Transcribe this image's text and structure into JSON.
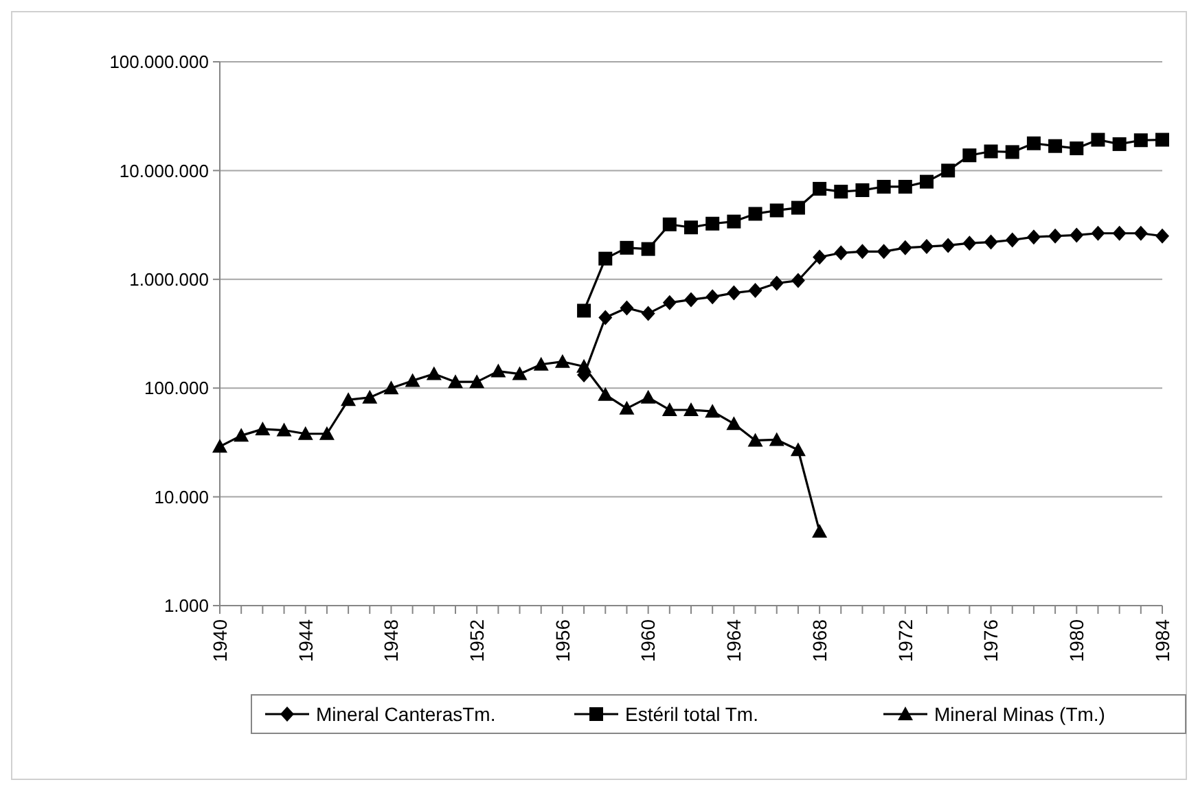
{
  "chart_data": {
    "type": "line",
    "log": true,
    "grid": "y",
    "legend": "bottom",
    "x": [
      1940,
      1941,
      1942,
      1943,
      1944,
      1945,
      1946,
      1947,
      1948,
      1949,
      1950,
      1951,
      1952,
      1953,
      1954,
      1955,
      1956,
      1957,
      1958,
      1959,
      1960,
      1961,
      1962,
      1963,
      1964,
      1965,
      1966,
      1967,
      1968,
      1969,
      1970,
      1971,
      1972,
      1973,
      1974,
      1975,
      1976,
      1977,
      1978,
      1979,
      1980,
      1981,
      1982,
      1983,
      1984
    ],
    "xlim": [
      1940,
      1984
    ],
    "xticks": [
      1940,
      1944,
      1948,
      1952,
      1956,
      1960,
      1964,
      1968,
      1972,
      1976,
      1980,
      1984
    ],
    "ylim": [
      1000,
      100000000
    ],
    "yticks": [
      {
        "value": 1000,
        "label": "1.000"
      },
      {
        "value": 10000,
        "label": "10.000"
      },
      {
        "value": 100000,
        "label": "100.000"
      },
      {
        "value": 1000000,
        "label": "1.000.000"
      },
      {
        "value": 10000000,
        "label": "10.000.000"
      },
      {
        "value": 100000000,
        "label": "100.000.000"
      }
    ],
    "series": [
      {
        "name": "Mineral CanterasTm.",
        "color": "#000000",
        "marker": "diamond",
        "values": [
          null,
          null,
          null,
          null,
          null,
          null,
          null,
          null,
          null,
          null,
          null,
          null,
          null,
          null,
          null,
          null,
          null,
          132000,
          445000,
          545000,
          485000,
          610000,
          650000,
          690000,
          750000,
          790000,
          920000,
          975000,
          1600000,
          1750000,
          1800000,
          1800000,
          1950000,
          2000000,
          2050000,
          2150000,
          2200000,
          2300000,
          2450000,
          2500000,
          2550000,
          2650000,
          2650000,
          2650000,
          2500000
        ]
      },
      {
        "name": "Estéril total Tm.",
        "color": "#000000",
        "marker": "square",
        "values": [
          null,
          null,
          null,
          null,
          null,
          null,
          null,
          null,
          null,
          null,
          null,
          null,
          null,
          null,
          null,
          null,
          null,
          515000,
          1550000,
          1950000,
          1900000,
          3200000,
          3000000,
          3250000,
          3400000,
          4000000,
          4300000,
          4550000,
          6800000,
          6400000,
          6600000,
          7100000,
          7100000,
          7900000,
          10000000,
          13800000,
          15000000,
          14800000,
          17800000,
          16800000,
          16000000,
          19200000,
          17500000,
          19000000,
          19200000
        ]
      },
      {
        "name": "Mineral Minas (Tm.)",
        "color": "#000000",
        "marker": "triangle",
        "values": [
          29000,
          36600,
          42000,
          41000,
          38000,
          38000,
          78000,
          82000,
          100000,
          117000,
          135000,
          114000,
          114000,
          143000,
          135000,
          165000,
          175000,
          158000,
          87000,
          65000,
          82000,
          63000,
          63000,
          61000,
          47000,
          33000,
          33500,
          27000,
          4800,
          null,
          null,
          null,
          null,
          null,
          null,
          null,
          null,
          null,
          null,
          null,
          null,
          null,
          null,
          null,
          null
        ]
      }
    ]
  }
}
